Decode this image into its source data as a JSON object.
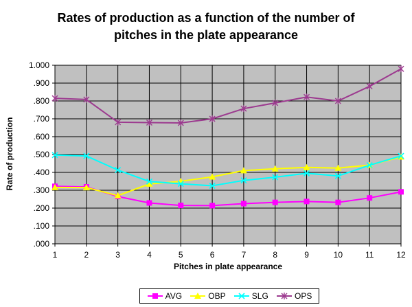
{
  "chart_data": {
    "type": "line",
    "title_line1": "Rates of production as a function of the number of",
    "title_line2": "pitches in the plate appearance",
    "xlabel": "Pitches in plate appearance",
    "ylabel": "Rate of production",
    "x": [
      1,
      2,
      3,
      4,
      5,
      6,
      7,
      8,
      9,
      10,
      11,
      12
    ],
    "ylim": [
      0,
      1.0
    ],
    "yticks": [
      ".000",
      ".100",
      ".200",
      ".300",
      ".400",
      ".500",
      ".600",
      ".700",
      ".800",
      ".900",
      "1.000"
    ],
    "grid": true,
    "legend_position": "bottom",
    "plot_background": "#c0c0c0",
    "series": [
      {
        "name": "AVG",
        "color": "#ff00ff",
        "marker": "square",
        "values": [
          0.322,
          0.319,
          0.265,
          0.229,
          0.215,
          0.214,
          0.225,
          0.232,
          0.237,
          0.232,
          0.257,
          0.291
        ]
      },
      {
        "name": "OBP",
        "color": "#ffff00",
        "marker": "triangle",
        "values": [
          0.316,
          0.315,
          0.27,
          0.335,
          0.35,
          0.375,
          0.41,
          0.42,
          0.428,
          0.424,
          0.441,
          0.487
        ]
      },
      {
        "name": "SLG",
        "color": "#00ffff",
        "marker": "x",
        "values": [
          0.497,
          0.492,
          0.413,
          0.349,
          0.336,
          0.325,
          0.355,
          0.373,
          0.395,
          0.38,
          0.44,
          0.492
        ]
      },
      {
        "name": "OPS",
        "color": "#9c3a8f",
        "marker": "star",
        "values": [
          0.815,
          0.808,
          0.681,
          0.679,
          0.677,
          0.7,
          0.757,
          0.789,
          0.822,
          0.8,
          0.882,
          0.98
        ]
      }
    ]
  }
}
